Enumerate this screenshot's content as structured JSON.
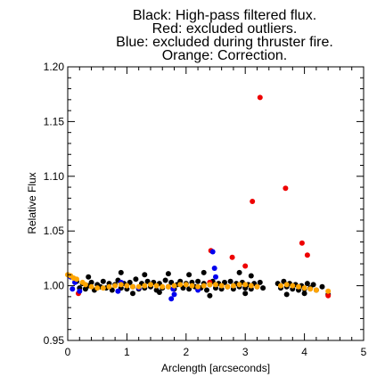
{
  "chart_data": {
    "type": "scatter",
    "title_lines": [
      "Black: High-pass filtered flux.",
      "Red: excluded outliers.",
      "Blue: excluded during thruster fire.",
      "Orange: Correction."
    ],
    "xlabel": "Arclength [arcseconds]",
    "ylabel": "Relative Flux",
    "xlim": [
      0,
      5
    ],
    "ylim": [
      0.95,
      1.2
    ],
    "xticks": [
      0,
      1,
      2,
      3,
      4,
      5
    ],
    "yticks": [
      0.95,
      1.0,
      1.05,
      1.1,
      1.15,
      1.2
    ],
    "ytick_labels": [
      "0.95",
      "1.00",
      "1.05",
      "1.10",
      "1.15",
      "1.20"
    ],
    "grid": false,
    "series": [
      {
        "color": "#000000",
        "points": [
          [
            0.15,
            1.004
          ],
          [
            0.2,
            0.998
          ],
          [
            0.25,
            1.002
          ],
          [
            0.3,
            0.997
          ],
          [
            0.35,
            1.0
          ],
          [
            0.4,
            1.003
          ],
          [
            0.45,
            0.996
          ],
          [
            0.5,
            1.001
          ],
          [
            0.55,
            0.999
          ],
          [
            0.6,
            1.004
          ],
          [
            0.65,
            0.998
          ],
          [
            0.7,
            1.002
          ],
          [
            0.75,
            0.996
          ],
          [
            0.8,
            1.001
          ],
          [
            0.85,
            1.005
          ],
          [
            0.9,
            0.998
          ],
          [
            0.95,
            1.002
          ],
          [
            1.0,
            0.997
          ],
          [
            1.05,
            1.003
          ],
          [
            1.1,
            0.999
          ],
          [
            1.15,
            1.006
          ],
          [
            1.2,
            0.997
          ],
          [
            1.25,
            1.002
          ],
          [
            1.3,
            0.998
          ],
          [
            1.35,
            1.004
          ],
          [
            1.4,
            0.999
          ],
          [
            1.45,
            1.003
          ],
          [
            1.5,
            0.996
          ],
          [
            1.55,
            1.002
          ],
          [
            1.6,
            0.998
          ],
          [
            1.65,
            1.005
          ],
          [
            1.7,
            0.999
          ],
          [
            1.75,
            1.003
          ],
          [
            1.8,
            0.997
          ],
          [
            1.85,
            1.001
          ],
          [
            1.9,
            1.004
          ],
          [
            1.95,
            0.998
          ],
          [
            2.0,
            1.002
          ],
          [
            2.05,
            0.997
          ],
          [
            2.1,
            1.003
          ],
          [
            2.15,
            0.999
          ],
          [
            2.2,
            1.004
          ],
          [
            2.25,
            0.998
          ],
          [
            2.3,
            1.002
          ],
          [
            2.35,
            0.996
          ],
          [
            2.4,
            1.001
          ],
          [
            2.45,
            1.004
          ],
          [
            2.5,
            0.998
          ],
          [
            2.55,
            1.002
          ],
          [
            2.6,
            0.997
          ],
          [
            2.65,
            1.003
          ],
          [
            2.7,
            0.999
          ],
          [
            2.75,
            1.004
          ],
          [
            2.8,
            0.997
          ],
          [
            2.85,
            1.002
          ],
          [
            2.9,
            0.999
          ],
          [
            2.95,
            1.003
          ],
          [
            3.0,
            0.998
          ],
          [
            3.05,
            1.001
          ],
          [
            3.1,
            0.997
          ],
          [
            3.15,
            1.002
          ],
          [
            3.2,
            0.999
          ],
          [
            3.25,
            1.003
          ],
          [
            3.3,
            0.998
          ],
          [
            3.55,
            1.002
          ],
          [
            3.6,
            0.998
          ],
          [
            3.65,
            1.004
          ],
          [
            3.7,
            0.999
          ],
          [
            3.75,
            1.002
          ],
          [
            3.8,
            0.997
          ],
          [
            3.85,
            1.001
          ],
          [
            3.9,
            0.996
          ],
          [
            3.95,
            1.0
          ],
          [
            4.0,
            0.997
          ],
          [
            4.05,
            1.002
          ],
          [
            4.1,
            0.998
          ],
          [
            4.15,
            1.001
          ],
          [
            4.2,
            0.996
          ],
          [
            4.3,
            0.999
          ],
          [
            0.9,
            1.012
          ],
          [
            1.3,
            1.01
          ],
          [
            1.7,
            1.011
          ],
          [
            2.05,
            1.01
          ],
          [
            2.3,
            1.012
          ],
          [
            2.9,
            1.012
          ],
          [
            2.4,
            0.991
          ],
          [
            3.0,
            0.993
          ],
          [
            1.1,
            0.993
          ],
          [
            1.55,
            0.994
          ],
          [
            3.7,
            0.992
          ],
          [
            4.0,
            0.993
          ],
          [
            4.4,
            0.992
          ],
          [
            0.35,
            1.008
          ],
          [
            3.1,
            1.009
          ]
        ]
      },
      {
        "color": "#ee0000",
        "points": [
          [
            3.25,
            1.172
          ],
          [
            3.68,
            1.089
          ],
          [
            3.12,
            1.077
          ],
          [
            3.96,
            1.039
          ],
          [
            4.05,
            1.028
          ],
          [
            2.42,
            1.032
          ],
          [
            2.78,
            1.026
          ],
          [
            3.0,
            1.018
          ],
          [
            2.4,
            1.003
          ],
          [
            0.18,
            0.993
          ],
          [
            4.4,
            0.991
          ]
        ]
      },
      {
        "color": "#0000ee",
        "points": [
          [
            0.05,
            1.008
          ],
          [
            0.08,
            0.997
          ],
          [
            0.12,
            1.003
          ],
          [
            0.2,
            0.995
          ],
          [
            2.45,
            1.031
          ],
          [
            2.48,
            1.016
          ],
          [
            1.75,
            0.988
          ],
          [
            1.8,
            0.992
          ],
          [
            1.78,
            0.997
          ],
          [
            2.2,
            0.996
          ],
          [
            0.85,
            0.995
          ],
          [
            0.9,
            1.003
          ],
          [
            2.5,
            1.008
          ],
          [
            1.2,
            0.998
          ]
        ]
      },
      {
        "color": "#ffa500",
        "points": [
          [
            0.0,
            1.01
          ],
          [
            0.05,
            1.009
          ],
          [
            0.1,
            1.007
          ],
          [
            0.15,
            1.006
          ],
          [
            0.25,
            1.003
          ],
          [
            0.3,
            1.001
          ],
          [
            0.4,
            0.999
          ],
          [
            0.5,
            0.998
          ],
          [
            0.6,
            0.998
          ],
          [
            0.7,
            0.999
          ],
          [
            0.8,
            1.0
          ],
          [
            0.9,
            1.001
          ],
          [
            1.0,
            1.0
          ],
          [
            1.1,
            0.999
          ],
          [
            1.2,
            0.999
          ],
          [
            1.3,
            1.0
          ],
          [
            1.4,
            1.001
          ],
          [
            1.5,
            1.0
          ],
          [
            1.6,
            0.999
          ],
          [
            1.7,
            0.999
          ],
          [
            1.8,
            1.0
          ],
          [
            1.9,
            1.001
          ],
          [
            2.0,
            1.001
          ],
          [
            2.1,
            1.0
          ],
          [
            2.2,
            0.999
          ],
          [
            2.3,
            1.0
          ],
          [
            2.4,
            1.001
          ],
          [
            2.5,
            1.001
          ],
          [
            2.6,
            1.0
          ],
          [
            2.7,
            0.999
          ],
          [
            2.8,
            1.0
          ],
          [
            2.9,
            1.001
          ],
          [
            3.0,
            1.001
          ],
          [
            3.1,
            1.0
          ],
          [
            3.2,
            0.999
          ],
          [
            3.6,
            1.0
          ],
          [
            3.7,
            1.001
          ],
          [
            3.8,
            1.0
          ],
          [
            3.9,
            0.999
          ],
          [
            4.0,
            0.998
          ],
          [
            4.1,
            0.997
          ],
          [
            4.2,
            0.996
          ],
          [
            4.4,
            0.995
          ]
        ]
      }
    ]
  }
}
